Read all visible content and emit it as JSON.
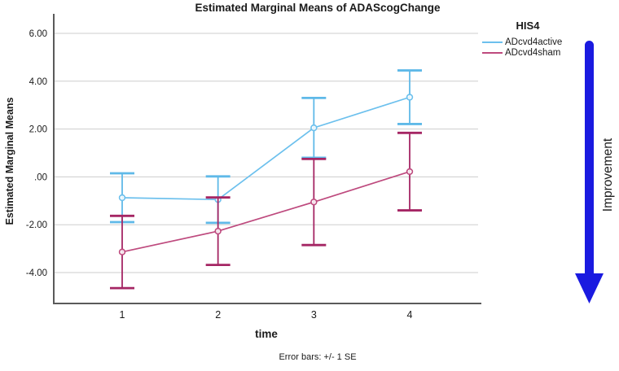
{
  "chart_data": {
    "type": "line",
    "title": "Estimated Marginal Means of ADAScogChange",
    "xlabel": "time",
    "ylabel": "Estimated Marginal Means",
    "footnote": "Error bars: +/- 1 SE",
    "x": [
      1,
      2,
      3,
      4
    ],
    "x_tick_labels": [
      "1",
      "2",
      "3",
      "4"
    ],
    "y_ticks": [
      6,
      4,
      2,
      0,
      -2,
      -4
    ],
    "y_tick_labels": [
      "6.00",
      "4.00",
      "2.00",
      ".00",
      "-2.00",
      "-4.00"
    ],
    "ylim": [
      -5.3,
      6.8
    ],
    "grid": "horizontal-only",
    "error_bar_definition": "+/- 1 SE",
    "legend": {
      "title": "HIS4",
      "position": "top-right-outside"
    },
    "series": [
      {
        "name": "ADcvd4active",
        "color": "#6CC0ED",
        "error_color": "#5FB9E8",
        "marker": "circle",
        "means": [
          -0.87,
          -0.95,
          2.05,
          3.33
        ],
        "se": [
          1.02,
          0.97,
          1.25,
          1.12
        ]
      },
      {
        "name": "ADcvd4sham",
        "color": "#BE4A7E",
        "error_color": "#A52664",
        "marker": "circle",
        "means": [
          -3.14,
          -2.27,
          -1.05,
          0.22
        ],
        "se": [
          1.51,
          1.41,
          1.8,
          1.62
        ]
      }
    ]
  },
  "annotation": {
    "improvement_label": "Improvement",
    "arrow_color": "#1A1AE0",
    "arrow_direction": "down"
  }
}
